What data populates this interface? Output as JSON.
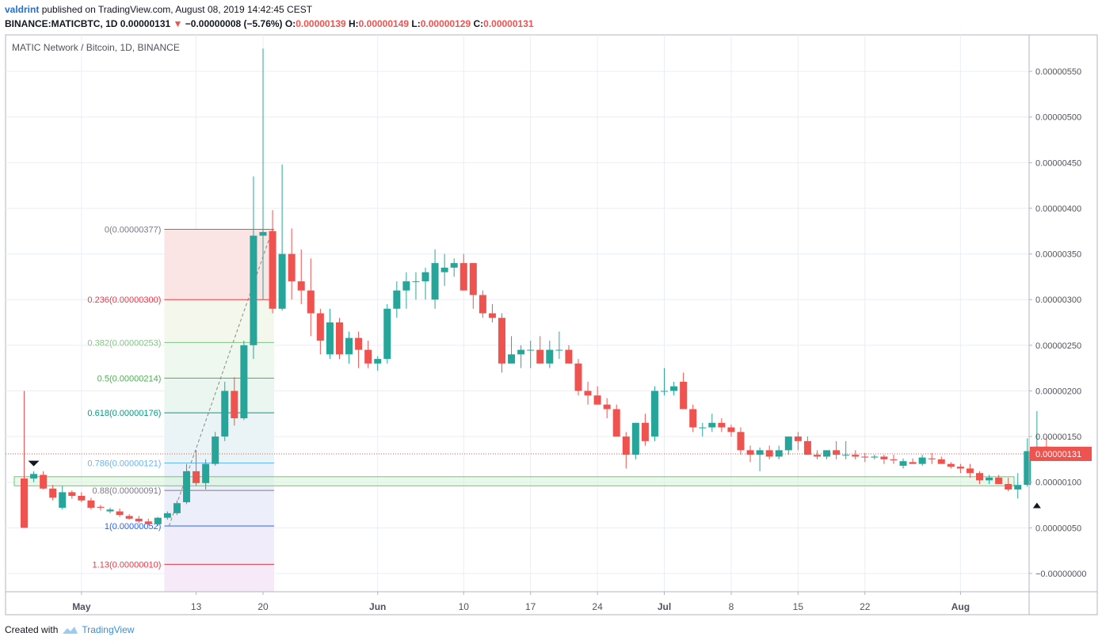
{
  "header": {
    "author": "valdrint",
    "published_text": "published on TradingView.com, August 08, 2019 14:42:45 CEST",
    "symbol": "BINANCE:MATICBTC, 1D",
    "last": "0.00000131",
    "change": "−0.00000008 (−5.76%)",
    "o_label": "O:",
    "o": "0.00000139",
    "h_label": "H:",
    "h": "0.00000149",
    "l_label": "L:",
    "l": "0.00000129",
    "c_label": "C:",
    "c": "0.00000131",
    "down_arrow": "▼"
  },
  "footer": {
    "created_with": "Created with",
    "brand": "TradingView",
    "logo_icon": "tradingview-cloud-icon"
  },
  "colors": {
    "up": "#26a69a",
    "down": "#ef5350",
    "grid": "#e9eef6",
    "axis": "#9598a1",
    "zone_border": "#6ec86e",
    "zone_fill": "#d9f4d9",
    "price_line": "#ef5350"
  },
  "chart_data": {
    "type": "candlestick",
    "title": "MATIC Network / Bitcoin, 1D, BINANCE",
    "y_ticks": [
      "0.00000550",
      "0.00000500",
      "0.00000450",
      "0.00000400",
      "0.00000350",
      "0.00000300",
      "0.00000250",
      "0.00000200",
      "0.00000150",
      "0.00000100",
      "0.00000050",
      "−0.00000000"
    ],
    "y_tick_values": [
      5.5,
      5,
      4.5,
      4,
      3.5,
      3,
      2.5,
      2,
      1.5,
      1,
      0.5,
      0
    ],
    "y_unit_note": "values below are in units of 1e-6 BTC",
    "ylim": [
      -0.2,
      5.9
    ],
    "x_ticks": [
      {
        "label": "May",
        "index": 6
      },
      {
        "label": "13",
        "index": 18
      },
      {
        "label": "20",
        "index": 25
      },
      {
        "label": "Jun",
        "index": 37
      },
      {
        "label": "10",
        "index": 46
      },
      {
        "label": "17",
        "index": 53
      },
      {
        "label": "24",
        "index": 60
      },
      {
        "label": "Jul",
        "index": 67
      },
      {
        "label": "8",
        "index": 74
      },
      {
        "label": "15",
        "index": 81
      },
      {
        "label": "22",
        "index": 88
      },
      {
        "label": "Aug",
        "index": 98
      }
    ],
    "x_bold_ticks": [
      "May",
      "Jun",
      "Jul",
      "Aug"
    ],
    "first_date": "Apr 25, 2019",
    "last_price_label": "0.00000131",
    "last_price": 1.31,
    "candles": [
      [
        1.04,
        2.0,
        0.5,
        0.5
      ],
      [
        1.04,
        1.12,
        1.0,
        1.09
      ],
      [
        1.08,
        1.12,
        0.92,
        0.93
      ],
      [
        0.93,
        0.97,
        0.8,
        0.83
      ],
      [
        0.72,
        0.96,
        0.7,
        0.89
      ],
      [
        0.89,
        0.91,
        0.82,
        0.85
      ],
      [
        0.85,
        0.89,
        0.78,
        0.8
      ],
      [
        0.8,
        0.83,
        0.7,
        0.72
      ],
      [
        0.73,
        0.75,
        0.69,
        0.72
      ],
      [
        0.68,
        0.72,
        0.66,
        0.7
      ],
      [
        0.68,
        0.71,
        0.62,
        0.64
      ],
      [
        0.63,
        0.65,
        0.59,
        0.6
      ],
      [
        0.6,
        0.63,
        0.55,
        0.57
      ],
      [
        0.57,
        0.6,
        0.53,
        0.54
      ],
      [
        0.54,
        0.62,
        0.52,
        0.61
      ],
      [
        0.61,
        0.68,
        0.59,
        0.66
      ],
      [
        0.66,
        0.8,
        0.64,
        0.77
      ],
      [
        0.78,
        1.2,
        0.76,
        1.12
      ],
      [
        1.12,
        1.35,
        0.96,
        0.99
      ],
      [
        0.99,
        1.25,
        0.92,
        1.2
      ],
      [
        1.2,
        1.55,
        1.18,
        1.5
      ],
      [
        1.5,
        2.1,
        1.45,
        2.0
      ],
      [
        2.0,
        2.15,
        1.62,
        1.7
      ],
      [
        1.7,
        2.55,
        1.68,
        2.5
      ],
      [
        2.5,
        4.35,
        2.35,
        3.7
      ],
      [
        3.7,
        5.75,
        3.0,
        3.74
      ],
      [
        3.75,
        3.98,
        2.85,
        2.9
      ],
      [
        2.9,
        4.48,
        2.88,
        3.5
      ],
      [
        3.5,
        3.78,
        3.0,
        3.2
      ],
      [
        3.2,
        3.55,
        2.95,
        3.1
      ],
      [
        3.1,
        3.45,
        2.6,
        2.85
      ],
      [
        2.85,
        2.9,
        2.4,
        2.55
      ],
      [
        2.4,
        2.9,
        2.35,
        2.75
      ],
      [
        2.75,
        2.8,
        2.35,
        2.4
      ],
      [
        2.4,
        2.65,
        2.3,
        2.58
      ],
      [
        2.58,
        2.65,
        2.25,
        2.45
      ],
      [
        2.45,
        2.55,
        2.25,
        2.3
      ],
      [
        2.3,
        2.38,
        2.22,
        2.35
      ],
      [
        2.35,
        2.95,
        2.3,
        2.9
      ],
      [
        2.9,
        3.2,
        2.8,
        3.1
      ],
      [
        3.1,
        3.3,
        2.9,
        3.2
      ],
      [
        3.2,
        3.3,
        3.0,
        3.2
      ],
      [
        3.2,
        3.35,
        3.0,
        3.3
      ],
      [
        3.0,
        3.55,
        2.9,
        3.4
      ],
      [
        3.3,
        3.5,
        3.15,
        3.35
      ],
      [
        3.35,
        3.45,
        3.25,
        3.4
      ],
      [
        3.4,
        3.5,
        3.1,
        3.1
      ],
      [
        3.4,
        3.4,
        2.9,
        3.05
      ],
      [
        3.05,
        3.1,
        2.8,
        2.85
      ],
      [
        2.85,
        2.95,
        2.75,
        2.8
      ],
      [
        2.8,
        2.85,
        2.2,
        2.3
      ],
      [
        2.3,
        2.6,
        2.3,
        2.4
      ],
      [
        2.4,
        2.5,
        2.25,
        2.45
      ],
      [
        2.45,
        2.55,
        2.25,
        2.45
      ],
      [
        2.45,
        2.6,
        2.3,
        2.3
      ],
      [
        2.3,
        2.55,
        2.25,
        2.45
      ],
      [
        2.45,
        2.65,
        2.35,
        2.45
      ],
      [
        2.45,
        2.5,
        2.3,
        2.3
      ],
      [
        2.3,
        2.35,
        1.95,
        2.0
      ],
      [
        2.0,
        2.1,
        1.85,
        1.95
      ],
      [
        1.95,
        2.05,
        1.85,
        1.85
      ],
      [
        1.85,
        1.92,
        1.7,
        1.8
      ],
      [
        1.8,
        1.85,
        1.5,
        1.5
      ],
      [
        1.5,
        1.55,
        1.15,
        1.3
      ],
      [
        1.3,
        1.65,
        1.25,
        1.65
      ],
      [
        1.65,
        1.75,
        1.4,
        1.45
      ],
      [
        1.5,
        2.05,
        1.45,
        2.0
      ],
      [
        2.0,
        2.25,
        1.95,
        2.0
      ],
      [
        2.0,
        2.1,
        1.95,
        2.05
      ],
      [
        2.1,
        2.2,
        1.8,
        1.8
      ],
      [
        1.8,
        1.85,
        1.55,
        1.6
      ],
      [
        1.6,
        1.65,
        1.5,
        1.6
      ],
      [
        1.6,
        1.75,
        1.55,
        1.65
      ],
      [
        1.65,
        1.7,
        1.55,
        1.6
      ],
      [
        1.6,
        1.63,
        1.5,
        1.55
      ],
      [
        1.55,
        1.6,
        1.3,
        1.35
      ],
      [
        1.35,
        1.4,
        1.22,
        1.3
      ],
      [
        1.3,
        1.38,
        1.12,
        1.35
      ],
      [
        1.35,
        1.4,
        1.25,
        1.28
      ],
      [
        1.28,
        1.4,
        1.25,
        1.35
      ],
      [
        1.35,
        1.5,
        1.3,
        1.5
      ],
      [
        1.5,
        1.55,
        1.35,
        1.45
      ],
      [
        1.45,
        1.5,
        1.3,
        1.3
      ],
      [
        1.3,
        1.35,
        1.25,
        1.28
      ],
      [
        1.28,
        1.35,
        1.25,
        1.35
      ],
      [
        1.35,
        1.45,
        1.25,
        1.3
      ],
      [
        1.3,
        1.45,
        1.25,
        1.3
      ],
      [
        1.3,
        1.35,
        1.25,
        1.28
      ],
      [
        1.28,
        1.32,
        1.22,
        1.27
      ],
      [
        1.27,
        1.3,
        1.25,
        1.28
      ],
      [
        1.28,
        1.3,
        1.2,
        1.25
      ],
      [
        1.25,
        1.3,
        1.2,
        1.24
      ],
      [
        1.18,
        1.26,
        1.15,
        1.23
      ],
      [
        1.22,
        1.26,
        1.2,
        1.2
      ],
      [
        1.2,
        1.3,
        1.18,
        1.27
      ],
      [
        1.26,
        1.32,
        1.2,
        1.25
      ],
      [
        1.25,
        1.28,
        1.2,
        1.2
      ],
      [
        1.2,
        1.22,
        1.15,
        1.17
      ],
      [
        1.17,
        1.2,
        1.1,
        1.15
      ],
      [
        1.15,
        1.2,
        1.05,
        1.1
      ],
      [
        1.1,
        1.12,
        0.98,
        1.02
      ],
      [
        1.02,
        1.08,
        0.98,
        1.05
      ],
      [
        1.05,
        1.08,
        0.98,
        0.98
      ],
      [
        0.98,
        1.05,
        0.9,
        0.92
      ],
      [
        0.92,
        1.1,
        0.82,
        0.97
      ],
      [
        0.97,
        1.48,
        0.95,
        1.34
      ],
      [
        1.34,
        1.78,
        1.3,
        1.39
      ],
      [
        1.39,
        1.49,
        1.29,
        1.31
      ]
    ],
    "fib_retracement": {
      "start_index": 15,
      "end_index": 26,
      "levels": [
        {
          "label": "0(0.00000377)",
          "value": 3.77,
          "color": "#787b86"
        },
        {
          "label": "0.236(0.00000300)",
          "value": 3.0,
          "color": "#f23645"
        },
        {
          "label": "0.382(0.00000253)",
          "value": 2.53,
          "color": "#81c784"
        },
        {
          "label": "0.5(0.00000214)",
          "value": 2.14,
          "color": "#4caf50"
        },
        {
          "label": "0.618(0.00000176)",
          "value": 1.76,
          "color": "#089981"
        },
        {
          "label": "0.786(0.00000121)",
          "value": 1.21,
          "color": "#64b5f6"
        },
        {
          "label": "0.88(0.00000091)",
          "value": 0.91,
          "color": "#787b86"
        },
        {
          "label": "1(0.00000052)",
          "value": 0.52,
          "color": "#2962ff"
        },
        {
          "label": "1.13(0.00000010)",
          "value": 0.1,
          "color": "#f23645"
        }
      ],
      "band_fills": [
        "#fbe4e4",
        "#f4f8ec",
        "#eef8ee",
        "#eaf6ef",
        "#eaf4f6",
        "#eaf1fa",
        "#eceffa",
        "#f1ecfa",
        "#f7eaf8"
      ]
    },
    "support_zone": {
      "low": 0.96,
      "high": 1.06,
      "start_index": 0
    },
    "markers": [
      {
        "type": "arrow-down",
        "index": 1,
        "value": 1.2
      },
      {
        "type": "arrow-up",
        "index": 106,
        "value": 0.75
      }
    ]
  }
}
